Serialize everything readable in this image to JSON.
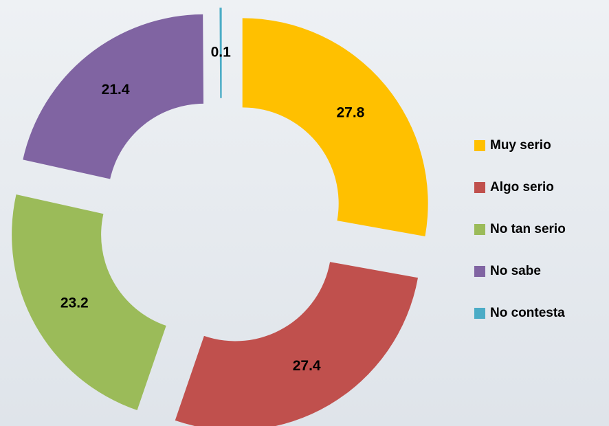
{
  "chart_data": {
    "type": "donut",
    "categories": [
      "Muy serio",
      "Algo serio",
      "No tan serio",
      "No sabe",
      "No contesta"
    ],
    "values": [
      27.8,
      27.4,
      23.2,
      21.4,
      0.1
    ],
    "colors": [
      "#FFC000",
      "#C0504D",
      "#9BBB59",
      "#8064A2",
      "#4BACC6"
    ],
    "legend": "right"
  }
}
